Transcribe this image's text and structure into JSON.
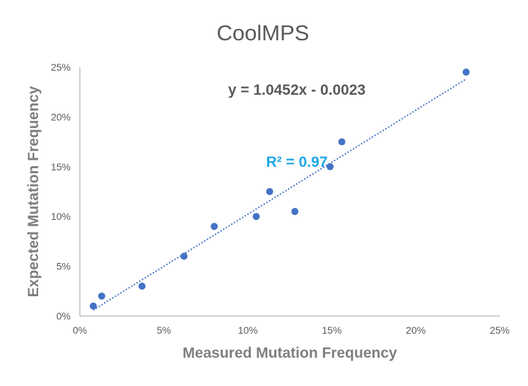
{
  "chart_data": {
    "type": "scatter",
    "title": "CoolMPS",
    "xlabel": "Measured Mutation Frequency",
    "ylabel": "Expected Mutation Frequency",
    "xlim": [
      0,
      0.25
    ],
    "ylim": [
      0,
      0.25
    ],
    "x_ticks": [
      "0%",
      "5%",
      "10%",
      "15%",
      "20%",
      "25%"
    ],
    "y_ticks": [
      "0%",
      "5%",
      "10%",
      "15%",
      "20%",
      "25%"
    ],
    "grid": false,
    "series": [
      {
        "points": [
          {
            "x": 0.008,
            "y": 0.01
          },
          {
            "x": 0.013,
            "y": 0.02
          },
          {
            "x": 0.037,
            "y": 0.03
          },
          {
            "x": 0.062,
            "y": 0.06
          },
          {
            "x": 0.08,
            "y": 0.09
          },
          {
            "x": 0.105,
            "y": 0.1
          },
          {
            "x": 0.113,
            "y": 0.125
          },
          {
            "x": 0.128,
            "y": 0.105
          },
          {
            "x": 0.149,
            "y": 0.15
          },
          {
            "x": 0.156,
            "y": 0.175
          },
          {
            "x": 0.23,
            "y": 0.245
          }
        ]
      }
    ],
    "trendline": {
      "type": "linear",
      "slope": 1.0452,
      "intercept": -0.0023,
      "x_range": [
        0.008,
        0.23
      ],
      "style": "dotted"
    },
    "equation_label": "y = 1.0452x - 0.0023",
    "r2_label": "R² = 0.97",
    "colors": {
      "points": "#4472c4",
      "trendline": "#4472c4",
      "r2_text": "#1fa7e8",
      "axis": "#bfbfbf",
      "text": "#595959"
    }
  }
}
